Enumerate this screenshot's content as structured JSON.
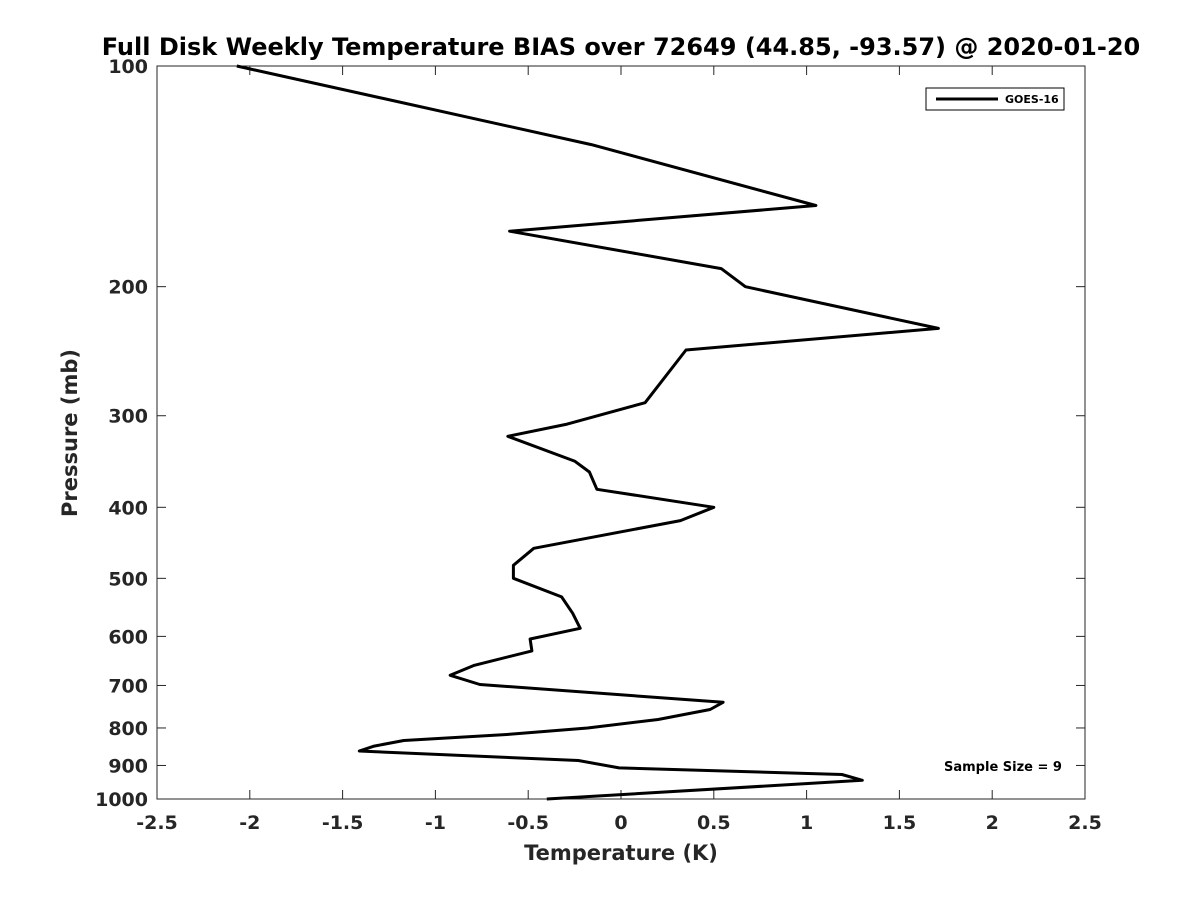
{
  "chart_data": {
    "type": "line",
    "title": "Full Disk Weekly Temperature BIAS over 72649 (44.85, -93.57) @ 2020-01-20",
    "xlabel": "Temperature (K)",
    "ylabel": "Pressure (mb)",
    "xlim": [
      -2.5,
      2.5
    ],
    "ylim": [
      100,
      1000
    ],
    "y_scale": "log",
    "y_reversed": true,
    "grid": false,
    "xticks": [
      -2.5,
      -2,
      -1.5,
      -1,
      -0.5,
      0,
      0.5,
      1,
      1.5,
      2,
      2.5
    ],
    "xtick_labels": [
      "-2.5",
      "-2",
      "-1.5",
      "-1",
      "-0.5",
      "0",
      "0.5",
      "1",
      "1.5",
      "2",
      "2.5"
    ],
    "yticks": [
      100,
      200,
      300,
      400,
      500,
      600,
      700,
      800,
      900,
      1000
    ],
    "ytick_labels": [
      "100",
      "200",
      "300",
      "400",
      "500",
      "600",
      "700",
      "800",
      "900",
      "1000"
    ],
    "legend_position": "top-right",
    "annotation": "Sample Size = 9",
    "series": [
      {
        "name": "GOES-16",
        "color": "#000000",
        "x": [
          -2.07,
          -0.16,
          1.05,
          -0.6,
          0.54,
          0.67,
          1.71,
          0.35,
          0.13,
          -0.29,
          -0.61,
          -0.25,
          -0.17,
          -0.13,
          0.5,
          0.32,
          -0.47,
          -0.58,
          -0.58,
          -0.32,
          -0.26,
          -0.22,
          -0.49,
          -0.48,
          -0.79,
          -0.92,
          -0.76,
          0.55,
          0.48,
          0.2,
          -0.18,
          -0.6,
          -1.17,
          -1.33,
          -1.41,
          -0.23,
          -0.01,
          1.19,
          1.3,
          -0.4
        ],
        "y": [
          100,
          128,
          155,
          168,
          189,
          200,
          228,
          244,
          288,
          308,
          320,
          346,
          358,
          378,
          400,
          417,
          455,
          480,
          500,
          530,
          558,
          585,
          605,
          628,
          657,
          678,
          698,
          738,
          755,
          779,
          800,
          816,
          832,
          847,
          860,
          886,
          907,
          926,
          943,
          1000
        ]
      }
    ]
  }
}
